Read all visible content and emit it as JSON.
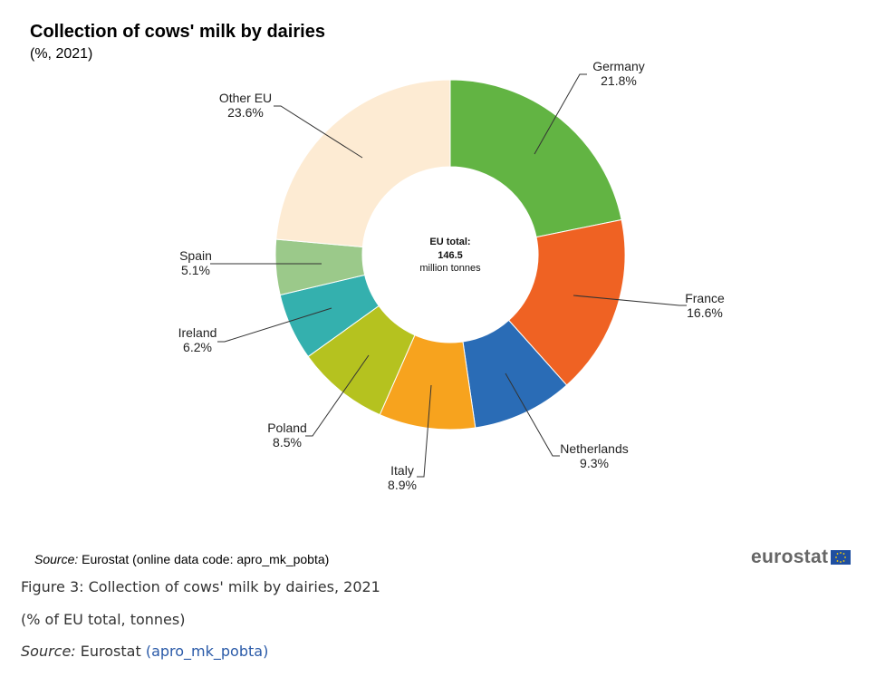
{
  "chart_data": {
    "type": "pie",
    "donut": true,
    "title": "Collection of cows' milk by dairies",
    "subtitle": "(%, 2021)",
    "center_label": [
      "EU total:",
      "146.5",
      "million tonnes"
    ],
    "unit": "%",
    "slices": [
      {
        "label": "Germany",
        "value": 21.8,
        "display": "21.8%",
        "color": "#62b443"
      },
      {
        "label": "France",
        "value": 16.6,
        "display": "16.6%",
        "color": "#ef6223"
      },
      {
        "label": "Netherlands",
        "value": 9.3,
        "display": "9.3%",
        "color": "#2a6cb6"
      },
      {
        "label": "Italy",
        "value": 8.9,
        "display": "8.9%",
        "color": "#f7a31e"
      },
      {
        "label": "Poland",
        "value": 8.5,
        "display": "8.5%",
        "color": "#b5c21f"
      },
      {
        "label": "Ireland",
        "value": 6.2,
        "display": "6.2%",
        "color": "#34b0ae"
      },
      {
        "label": "Spain",
        "value": 5.1,
        "display": "5.1%",
        "color": "#9bc98a"
      },
      {
        "label": "Other EU",
        "value": 23.6,
        "display": "23.6%",
        "color": "#fdebd3"
      }
    ]
  },
  "source": {
    "prefix": "Source:",
    "text": " Eurostat (online data code: apro_mk_pobta)"
  },
  "logo": {
    "text": "eurostat"
  },
  "caption": {
    "figure": "Figure 3: Collection of cows' milk by dairies, 2021",
    "units": "(% of EU total, tonnes)",
    "source_prefix": "Source:",
    "source_text": " Eurostat ",
    "source_link": "(apro_mk_pobta)"
  }
}
